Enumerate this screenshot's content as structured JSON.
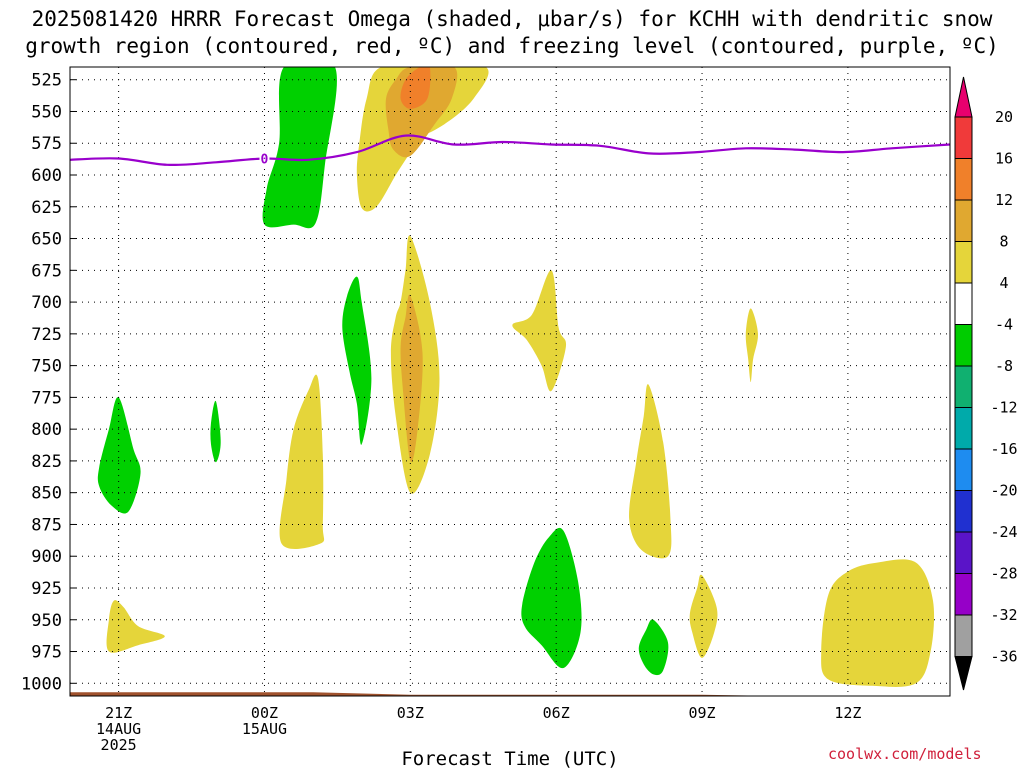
{
  "chart_data": {
    "type": "heatmap",
    "title_line1": "2025081420 HRRR Forecast Omega (shaded, μbar/s) for KCHH with dendritic snow",
    "title_line2": "growth region (contoured, red, ºC) and freezing level (contoured, purple, ºC)",
    "xlabel": "Forecast Time (UTC)",
    "credit": "coolwx.com/models",
    "y_axis": {
      "label": "",
      "reversed": true,
      "ylim": [
        1010,
        515
      ],
      "ticks": [
        525,
        550,
        575,
        600,
        625,
        650,
        675,
        700,
        725,
        750,
        775,
        800,
        825,
        850,
        875,
        900,
        925,
        950,
        975,
        1000
      ]
    },
    "x_axis": {
      "xlim": [
        19.0,
        37.1
      ],
      "ticks": [
        {
          "x": 20.0,
          "lines": [
            "21Z",
            "14AUG",
            "2025"
          ]
        },
        {
          "x": 23.0,
          "lines": [
            "00Z",
            "15AUG"
          ]
        },
        {
          "x": 26.0,
          "lines": [
            "03Z"
          ]
        },
        {
          "x": 29.0,
          "lines": [
            "06Z"
          ]
        },
        {
          "x": 32.0,
          "lines": [
            "09Z"
          ]
        },
        {
          "x": 35.0,
          "lines": [
            "12Z"
          ]
        }
      ]
    },
    "grid": true,
    "colorbar": {
      "levels": [
        20,
        16,
        12,
        8,
        4,
        -4,
        -8,
        -12,
        -16,
        -20,
        -24,
        -28,
        -32,
        -36
      ],
      "colors": [
        "#e8006e",
        "#f03a3a",
        "#f0802a",
        "#e0a830",
        "#e5d53a",
        "#ffffff",
        "#00cc00",
        "#10b070",
        "#00aaaa",
        "#1e8cf0",
        "#2030d0",
        "#5a14c8",
        "#9600c8",
        "#a0a0a0",
        "#000000"
      ]
    },
    "omega_regions": [
      {
        "name": "green-band-upper",
        "color": "#00d000",
        "points": [
          [
            23.0,
            639
          ],
          [
            23.05,
            610
          ],
          [
            23.3,
            575
          ],
          [
            23.4,
            515
          ],
          [
            24.45,
            515
          ],
          [
            24.25,
            590
          ],
          [
            24.05,
            638
          ],
          [
            23.6,
            639
          ]
        ]
      },
      {
        "name": "yellow-upper-cloud",
        "color": "#e5d53a",
        "points": [
          [
            24.9,
            600
          ],
          [
            24.95,
            575
          ],
          [
            25.1,
            540
          ],
          [
            25.4,
            515
          ],
          [
            26.6,
            515
          ],
          [
            26.5,
            540
          ],
          [
            26.1,
            575
          ],
          [
            25.7,
            600
          ],
          [
            25.3,
            625
          ],
          [
            25.0,
            626
          ]
        ]
      },
      {
        "name": "yellow-upper-cloud-east",
        "color": "#e5d53a",
        "points": [
          [
            26.2,
            515
          ],
          [
            27.55,
            515
          ],
          [
            27.3,
            540
          ],
          [
            26.7,
            560
          ],
          [
            26.2,
            567
          ],
          [
            26.3,
            540
          ]
        ]
      },
      {
        "name": "orange-upper-core",
        "color": "#e0a830",
        "points": [
          [
            25.55,
            565
          ],
          [
            25.5,
            540
          ],
          [
            25.7,
            525
          ],
          [
            26.0,
            515
          ],
          [
            26.9,
            515
          ],
          [
            26.85,
            540
          ],
          [
            26.5,
            560
          ],
          [
            26.0,
            585
          ],
          [
            25.65,
            580
          ]
        ]
      },
      {
        "name": "dark-orange-upper-core",
        "color": "#f0802a",
        "points": [
          [
            25.8,
            540
          ],
          [
            25.9,
            525
          ],
          [
            26.2,
            515
          ],
          [
            26.4,
            515
          ],
          [
            26.35,
            540
          ],
          [
            26.0,
            548
          ]
        ]
      },
      {
        "name": "green-sliver-700",
        "color": "#00d000",
        "points": [
          [
            24.6,
            720
          ],
          [
            24.7,
            695
          ],
          [
            24.9,
            680
          ],
          [
            25.0,
            700
          ],
          [
            25.2,
            760
          ],
          [
            25.0,
            812
          ],
          [
            24.9,
            780
          ],
          [
            24.75,
            755
          ]
        ]
      },
      {
        "name": "yellow-mid-cloud",
        "color": "#e5d53a",
        "points": [
          [
            25.8,
            700
          ],
          [
            25.9,
            675
          ],
          [
            26.0,
            648
          ],
          [
            26.4,
            700
          ],
          [
            26.6,
            760
          ],
          [
            26.4,
            820
          ],
          [
            26.0,
            850
          ],
          [
            25.7,
            790
          ],
          [
            25.6,
            740
          ],
          [
            25.7,
            712
          ]
        ]
      },
      {
        "name": "orange-mid-core",
        "color": "#e0a830",
        "points": [
          [
            25.9,
            712
          ],
          [
            26.0,
            695
          ],
          [
            26.25,
            740
          ],
          [
            26.15,
            800
          ],
          [
            26.0,
            825
          ],
          [
            25.85,
            770
          ],
          [
            25.8,
            735
          ]
        ]
      },
      {
        "name": "green-sw-blob",
        "color": "#00d000",
        "points": [
          [
            19.6,
            830
          ],
          [
            19.8,
            800
          ],
          [
            20.0,
            775
          ],
          [
            20.3,
            815
          ],
          [
            20.45,
            835
          ],
          [
            20.2,
            865
          ],
          [
            19.85,
            860
          ],
          [
            19.6,
            845
          ]
        ]
      },
      {
        "name": "green-small-2130",
        "color": "#00d000",
        "points": [
          [
            21.9,
            795
          ],
          [
            22.0,
            778
          ],
          [
            22.1,
            810
          ],
          [
            22.0,
            826
          ],
          [
            21.9,
            812
          ]
        ]
      },
      {
        "name": "yellow-0030",
        "color": "#e5d53a",
        "points": [
          [
            23.35,
            890
          ],
          [
            23.45,
            840
          ],
          [
            23.6,
            800
          ],
          [
            23.9,
            770
          ],
          [
            24.1,
            760
          ],
          [
            24.2,
            820
          ],
          [
            24.2,
            875
          ],
          [
            24.15,
            890
          ]
        ]
      },
      {
        "name": "yellow-sw-tongue",
        "color": "#e5d53a",
        "points": [
          [
            19.8,
            950
          ],
          [
            19.9,
            935
          ],
          [
            20.1,
            940
          ],
          [
            20.4,
            955
          ],
          [
            20.95,
            963
          ],
          [
            20.4,
            970
          ],
          [
            19.8,
            975
          ]
        ]
      },
      {
        "name": "yellow-0500-diamond",
        "color": "#e5d53a",
        "points": [
          [
            28.1,
            718
          ],
          [
            28.5,
            710
          ],
          [
            28.9,
            675
          ],
          [
            29.05,
            720
          ],
          [
            29.2,
            735
          ],
          [
            28.9,
            770
          ],
          [
            28.7,
            750
          ],
          [
            28.4,
            730
          ]
        ]
      },
      {
        "name": "green-0600-low",
        "color": "#00d000",
        "points": [
          [
            28.3,
            938
          ],
          [
            28.55,
            905
          ],
          [
            28.85,
            885
          ],
          [
            29.15,
            880
          ],
          [
            29.45,
            920
          ],
          [
            29.5,
            960
          ],
          [
            29.15,
            988
          ],
          [
            28.7,
            970
          ],
          [
            28.35,
            955
          ]
        ]
      },
      {
        "name": "yellow-0730-850",
        "color": "#e5d53a",
        "points": [
          [
            30.5,
            870
          ],
          [
            30.65,
            825
          ],
          [
            30.8,
            790
          ],
          [
            30.9,
            765
          ],
          [
            31.2,
            810
          ],
          [
            31.35,
            870
          ],
          [
            31.3,
            900
          ],
          [
            30.75,
            895
          ]
        ]
      },
      {
        "name": "green-0800-low",
        "color": "#00d000",
        "points": [
          [
            30.7,
            972
          ],
          [
            30.85,
            958
          ],
          [
            31.0,
            950
          ],
          [
            31.3,
            968
          ],
          [
            31.2,
            990
          ],
          [
            31.0,
            993
          ],
          [
            30.8,
            985
          ]
        ]
      },
      {
        "name": "yellow-0900-low",
        "color": "#e5d53a",
        "points": [
          [
            31.75,
            945
          ],
          [
            31.9,
            925
          ],
          [
            32.0,
            915
          ],
          [
            32.3,
            940
          ],
          [
            32.25,
            960
          ],
          [
            32.0,
            980
          ],
          [
            31.8,
            960
          ]
        ]
      },
      {
        "name": "yellow-1100-sliver",
        "color": "#e5d53a",
        "points": [
          [
            32.9,
            725
          ],
          [
            33.0,
            705
          ],
          [
            33.15,
            725
          ],
          [
            33.05,
            745
          ],
          [
            33.0,
            763
          ],
          [
            32.95,
            745
          ]
        ]
      },
      {
        "name": "yellow-1200-blob",
        "color": "#e5d53a",
        "points": [
          [
            34.45,
            975
          ],
          [
            34.6,
            930
          ],
          [
            35.0,
            912
          ],
          [
            35.6,
            905
          ],
          [
            36.4,
            905
          ],
          [
            36.75,
            935
          ],
          [
            36.7,
            975
          ],
          [
            36.4,
            1000
          ],
          [
            35.5,
            1002
          ],
          [
            34.6,
            997
          ]
        ]
      }
    ],
    "freezing_level": {
      "label": "0",
      "color": "#9900cc",
      "points": [
        [
          19.0,
          588
        ],
        [
          20.0,
          587
        ],
        [
          21.0,
          592
        ],
        [
          22.0,
          590
        ],
        [
          23.0,
          587
        ],
        [
          23.9,
          588
        ],
        [
          24.9,
          582
        ],
        [
          25.9,
          569
        ],
        [
          26.9,
          576
        ],
        [
          27.9,
          574
        ],
        [
          28.9,
          576
        ],
        [
          29.9,
          577
        ],
        [
          30.9,
          583
        ],
        [
          31.9,
          582
        ],
        [
          32.9,
          579
        ],
        [
          33.9,
          580
        ],
        [
          34.9,
          582
        ],
        [
          35.9,
          579
        ],
        [
          37.1,
          576
        ]
      ]
    },
    "terrain": {
      "color": "#a0522d",
      "points": [
        [
          19.0,
          1007
        ],
        [
          24.0,
          1007
        ],
        [
          26.0,
          1009
        ],
        [
          32.0,
          1009
        ],
        [
          33.5,
          1010
        ],
        [
          37.1,
          1010
        ]
      ]
    }
  }
}
